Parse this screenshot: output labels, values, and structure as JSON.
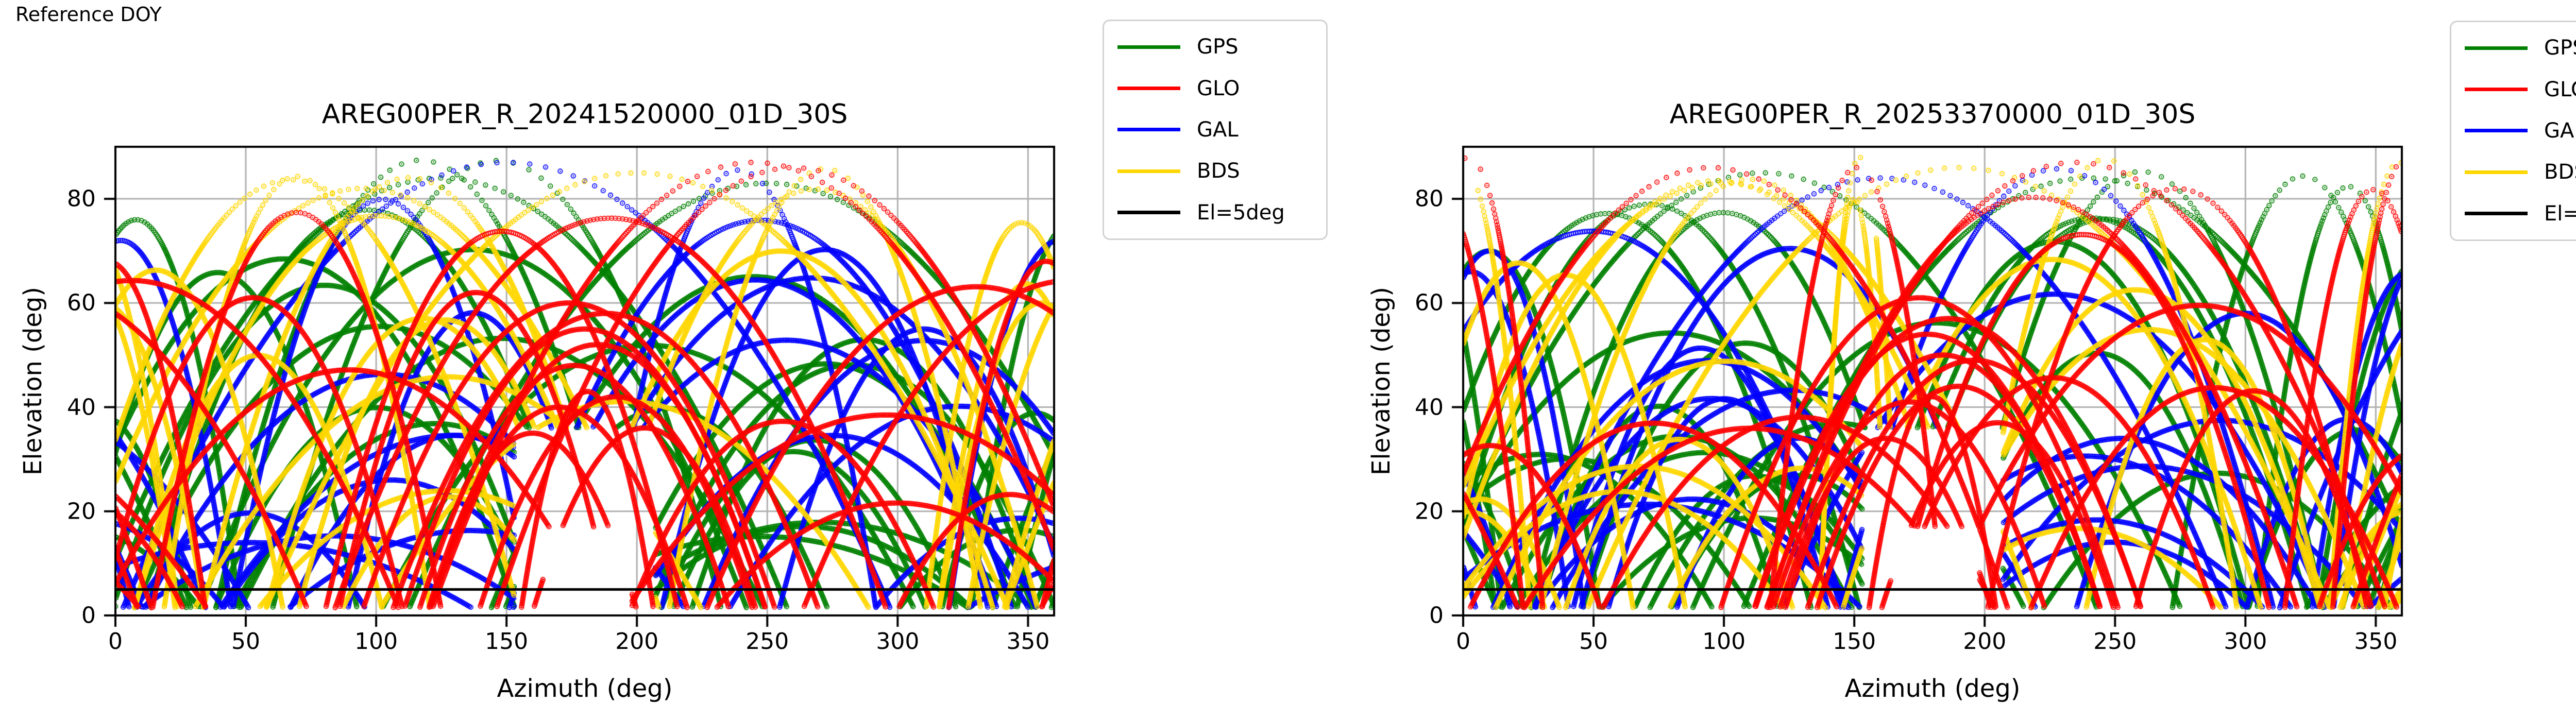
{
  "page": {
    "reference_label": "Reference DOY",
    "background": "#ffffff"
  },
  "legend_entries": [
    {
      "label": "GPS",
      "color": "#008000"
    },
    {
      "label": "GLO",
      "color": "#ff0000"
    },
    {
      "label": "GAL",
      "color": "#0000ff"
    },
    {
      "label": "BDS",
      "color": "#ffd700"
    },
    {
      "label": "El=5deg",
      "color": "#000000"
    }
  ],
  "style_colors": {
    "grid": "#b0b0b0",
    "spine": "#000000",
    "tick_label": "#000000"
  },
  "chart_data": [
    {
      "type": "scatter",
      "title": "AREG00PER_R_20241520000_01D_30S",
      "xlabel": "Azimuth (deg)",
      "ylabel": "Elevation (deg)",
      "xlim": [
        0,
        360
      ],
      "ylim": [
        0,
        90
      ],
      "xticks": [
        0,
        50,
        100,
        150,
        200,
        250,
        300,
        350
      ],
      "yticks": [
        0,
        20,
        40,
        60,
        80
      ],
      "grid": true,
      "legend_position": "outside-right-top",
      "threshold_line": {
        "label": "El=5deg",
        "elevation": 5,
        "color": "#000000"
      },
      "series": [
        {
          "name": "GPS",
          "color": "#008000",
          "marker": "open-circle"
        },
        {
          "name": "GLO",
          "color": "#ff0000",
          "marker": "open-circle"
        },
        {
          "name": "GAL",
          "color": "#0000ff",
          "marker": "open-circle"
        },
        {
          "name": "BDS",
          "color": "#ffd700",
          "marker": "open-circle"
        }
      ],
      "synthesis": {
        "description": "Dense 24h sky-track arcs (elevation vs azimuth), two lobes centered near az 95 and az 265, empty wedge near az 155-205 below el ~36 crossed only by GLO arcs, sparse dotted arcs above el ~75.",
        "seed": 241520,
        "arc_counts": {
          "GPS": 24,
          "GAL": 20,
          "BDS": 17,
          "GLO": 12
        },
        "feature_arcs": [
          {
            "series": "GLO",
            "center": 180,
            "halfwidth": 75,
            "peak": 55
          },
          {
            "series": "GLO",
            "center": 176,
            "halfwidth": 65,
            "peak": 48
          },
          {
            "series": "GLO",
            "center": 185,
            "halfwidth": 70,
            "peak": 52
          },
          {
            "series": "GLO",
            "center": 170,
            "halfwidth": 55,
            "peak": 40
          },
          {
            "series": "GLO",
            "center": 192,
            "halfwidth": 58,
            "peak": 42
          },
          {
            "series": "GLO",
            "center": 181,
            "halfwidth": 28,
            "peak": 43
          },
          {
            "series": "GLO",
            "center": 160,
            "halfwidth": 45,
            "peak": 35
          },
          {
            "series": "GLO",
            "center": 203,
            "halfwidth": 48,
            "peak": 36
          },
          {
            "series": "GLO",
            "center": 174,
            "halfwidth": 85,
            "peak": 60
          },
          {
            "series": "GLO",
            "center": 188,
            "halfwidth": 88,
            "peak": 58
          },
          {
            "series": "GLO",
            "center": 245,
            "halfwidth": 130,
            "peak": 87
          },
          {
            "series": "GLO",
            "center": 260,
            "halfwidth": 120,
            "peak": 86
          },
          {
            "series": "GLO",
            "center": 357,
            "halfwidth": 40,
            "peak": 68
          },
          {
            "series": "GPS",
            "center": 125,
            "halfwidth": 140,
            "peak": 84
          },
          {
            "series": "GPS",
            "center": 250,
            "halfwidth": 145,
            "peak": 83
          },
          {
            "series": "GPS",
            "center": 8,
            "halfwidth": 42,
            "peak": 76
          },
          {
            "series": "GAL",
            "center": 150,
            "halfwidth": 155,
            "peak": 87
          },
          {
            "series": "GAL",
            "center": 2,
            "halfwidth": 45,
            "peak": 72
          },
          {
            "series": "GAL",
            "center": 310,
            "halfwidth": 60,
            "peak": 55
          },
          {
            "series": "BDS",
            "center": 200,
            "halfwidth": 150,
            "peak": 85
          },
          {
            "series": "BDS",
            "center": 355,
            "halfwidth": 42,
            "peak": 60
          },
          {
            "series": "BDS",
            "center": 95,
            "halfwidth": 120,
            "peak": 82
          }
        ]
      }
    },
    {
      "type": "scatter",
      "title": "AREG00PER_R_20253370000_01D_30S",
      "xlabel": "Azimuth (deg)",
      "ylabel": "Elevation (deg)",
      "xlim": [
        0,
        360
      ],
      "ylim": [
        0,
        90
      ],
      "xticks": [
        0,
        50,
        100,
        150,
        200,
        250,
        300,
        350
      ],
      "yticks": [
        0,
        20,
        40,
        60,
        80
      ],
      "grid": true,
      "legend_position": "outside-right-top",
      "threshold_line": {
        "label": "El=5deg",
        "elevation": 5,
        "color": "#000000"
      },
      "series": [
        {
          "name": "GPS",
          "color": "#008000",
          "marker": "open-circle"
        },
        {
          "name": "GLO",
          "color": "#ff0000",
          "marker": "open-circle"
        },
        {
          "name": "GAL",
          "color": "#0000ff",
          "marker": "open-circle"
        },
        {
          "name": "BDS",
          "color": "#ffd700",
          "marker": "open-circle"
        }
      ],
      "synthesis": {
        "description": "Same station one year later: similar two-lobe arc structure, red/yellow near-vertical tracks at az ~0 and az ~150 reaching el ~88, GLO-only crossings in the south gap.",
        "seed": 253370,
        "arc_counts": {
          "GPS": 24,
          "GAL": 20,
          "BDS": 17,
          "GLO": 12
        },
        "feature_arcs": [
          {
            "series": "GLO",
            "center": 178,
            "halfwidth": 72,
            "peak": 54
          },
          {
            "series": "GLO",
            "center": 184,
            "halfwidth": 66,
            "peak": 50
          },
          {
            "series": "GLO",
            "center": 171,
            "halfwidth": 58,
            "peak": 41
          },
          {
            "series": "GLO",
            "center": 190,
            "halfwidth": 60,
            "peak": 44
          },
          {
            "series": "GLO",
            "center": 180,
            "halfwidth": 27,
            "peak": 42
          },
          {
            "series": "GLO",
            "center": 162,
            "halfwidth": 46,
            "peak": 34
          },
          {
            "series": "GLO",
            "center": 205,
            "halfwidth": 50,
            "peak": 37
          },
          {
            "series": "GLO",
            "center": 175,
            "halfwidth": 82,
            "peak": 61
          },
          {
            "series": "GLO",
            "center": 186,
            "halfwidth": 80,
            "peak": 57
          },
          {
            "series": "GLO",
            "center": 196,
            "halfwidth": 70,
            "peak": 49
          },
          {
            "series": "GLO",
            "center": 95,
            "halfwidth": 120,
            "peak": 86
          },
          {
            "series": "GLO",
            "center": 235,
            "halfwidth": 125,
            "peak": 87
          },
          {
            "series": "GLO",
            "center": 2,
            "halfwidth": 30,
            "peak": 88
          },
          {
            "series": "GLO",
            "center": 151,
            "halfwidth": 35,
            "peak": 86
          },
          {
            "series": "GPS",
            "center": 115,
            "halfwidth": 135,
            "peak": 85
          },
          {
            "series": "GPS",
            "center": 240,
            "halfwidth": 140,
            "peak": 84
          },
          {
            "series": "GPS",
            "center": 10,
            "halfwidth": 45,
            "peak": 70
          },
          {
            "series": "GAL",
            "center": 160,
            "halfwidth": 140,
            "peak": 84
          },
          {
            "series": "GAL",
            "center": 300,
            "halfwidth": 70,
            "peak": 58
          },
          {
            "series": "GAL",
            "center": 3,
            "halfwidth": 40,
            "peak": 66
          },
          {
            "series": "BDS",
            "center": 190,
            "halfwidth": 150,
            "peak": 86
          },
          {
            "series": "BDS",
            "center": 359,
            "halfwidth": 28,
            "peak": 87
          },
          {
            "series": "BDS",
            "center": 152,
            "halfwidth": 16,
            "peak": 88
          },
          {
            "series": "BDS",
            "center": 150,
            "halfwidth": 14,
            "peak": 80
          },
          {
            "series": "BDS",
            "center": 100,
            "halfwidth": 125,
            "peak": 83
          }
        ]
      }
    }
  ]
}
